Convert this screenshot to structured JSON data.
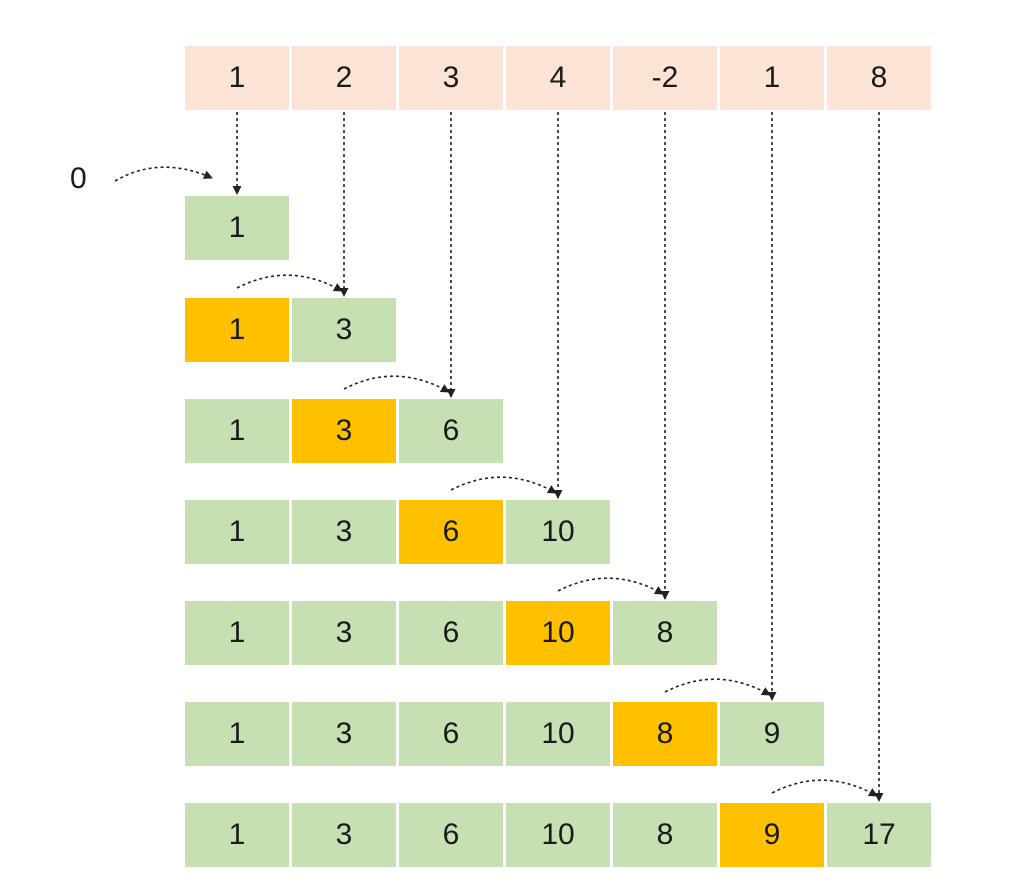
{
  "input": [
    "1",
    "2",
    "3",
    "4",
    "-2",
    "1",
    "8"
  ],
  "initial": "0",
  "rows": [
    [
      "1"
    ],
    [
      "1",
      "3"
    ],
    [
      "1",
      "3",
      "6"
    ],
    [
      "1",
      "3",
      "6",
      "10"
    ],
    [
      "1",
      "3",
      "6",
      "10",
      "8"
    ],
    [
      "1",
      "3",
      "6",
      "10",
      "8",
      "9"
    ],
    [
      "1",
      "3",
      "6",
      "10",
      "8",
      "9",
      "17"
    ]
  ],
  "colors": {
    "input": "#fbe3d6",
    "prefix": "#c6e0b4",
    "highlight": "#ffc000",
    "arrow": "#222222"
  }
}
